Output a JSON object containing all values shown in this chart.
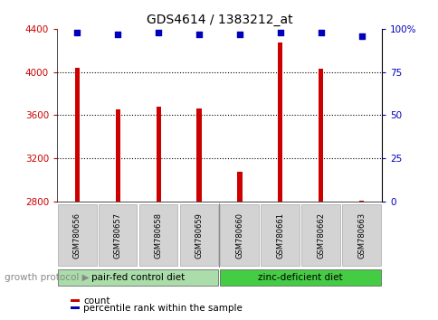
{
  "title": "GDS4614 / 1383212_at",
  "samples": [
    "GSM780656",
    "GSM780657",
    "GSM780658",
    "GSM780659",
    "GSM780660",
    "GSM780661",
    "GSM780662",
    "GSM780663"
  ],
  "counts": [
    4040,
    3650,
    3680,
    3660,
    3080,
    4270,
    4030,
    2810
  ],
  "percentiles": [
    98,
    97,
    98,
    97,
    97,
    98,
    98,
    96
  ],
  "ylim_left": [
    2800,
    4400
  ],
  "ylim_right": [
    0,
    100
  ],
  "yticks_left": [
    2800,
    3200,
    3600,
    4000,
    4400
  ],
  "yticks_right": [
    0,
    25,
    50,
    75,
    100
  ],
  "ytick_labels_right": [
    "0",
    "25",
    "50",
    "75",
    "100%"
  ],
  "bar_color": "#cc0000",
  "dot_color": "#0000bb",
  "bar_bottom": 2800,
  "grid_lines": [
    3200,
    3600,
    4000
  ],
  "group1_label": "pair-fed control diet",
  "group2_label": "zinc-deficient diet",
  "group1_indices": [
    0,
    1,
    2,
    3
  ],
  "group2_indices": [
    4,
    5,
    6,
    7
  ],
  "group1_color": "#aaddaa",
  "group2_color": "#44cc44",
  "protocol_label": "growth protocol",
  "legend_count_label": "count",
  "legend_pct_label": "percentile rank within the sample",
  "tick_color_left": "#cc0000",
  "tick_color_right": "#0000bb",
  "bar_width": 0.12
}
